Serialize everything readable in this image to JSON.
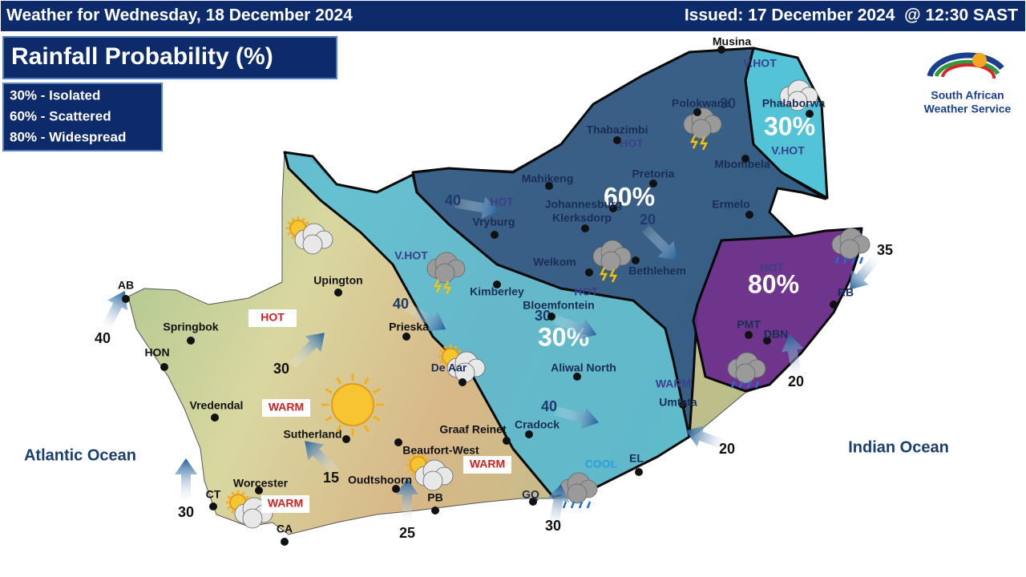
{
  "header": {
    "forecast_date": "Weather for Wednesday, 18 December 2024",
    "issued": "Issued: 17 December 2024  @ 12:30 SAST"
  },
  "title": "Rainfall Probability (%)",
  "legend": [
    "30% - Isolated",
    "60% - Scattered",
    "80% - Widespread"
  ],
  "logo": {
    "line1": "South African",
    "line2": "Weather Service"
  },
  "zones": [
    "60%",
    "30%",
    "30%",
    "80%"
  ],
  "places": [
    "Musina",
    "Polokwane",
    "Thabazimbi",
    "Phalaborwa",
    "Mbombela",
    "Mahikeng",
    "Pretoria",
    "Johannesburg",
    "Klerksdorp",
    "Ermelo",
    "Vryburg",
    "Welkom",
    "Bethlehem",
    "Kimberley",
    "Bloemfontein",
    "Upington",
    "Prieska",
    "Springbok",
    "HON",
    "AB",
    "Vredendal",
    "De Aar",
    "Aliwal North",
    "Umtata",
    "Cradock",
    "Graaf Reinet",
    "Beaufort-West",
    "Sutherland",
    "Worcester",
    "Oudtshoorn",
    "CT",
    "CA",
    "PB",
    "GQ",
    "EL",
    "PMT",
    "DBN",
    "RB"
  ],
  "temperature_tags": [
    "V.HOT",
    "HOT",
    "V.HOT",
    "HOT",
    "V.HOT",
    "HOT",
    "HOT",
    "WARM",
    "COOL",
    "HOT",
    "WARM",
    "WARM",
    "WARM"
  ],
  "wind_speeds": [
    40,
    30,
    15,
    30,
    25,
    30,
    20,
    20,
    35,
    40,
    40,
    30,
    40,
    20,
    30
  ],
  "oceans": [
    "Atlantic Ocean",
    "Indian Ocean"
  ]
}
